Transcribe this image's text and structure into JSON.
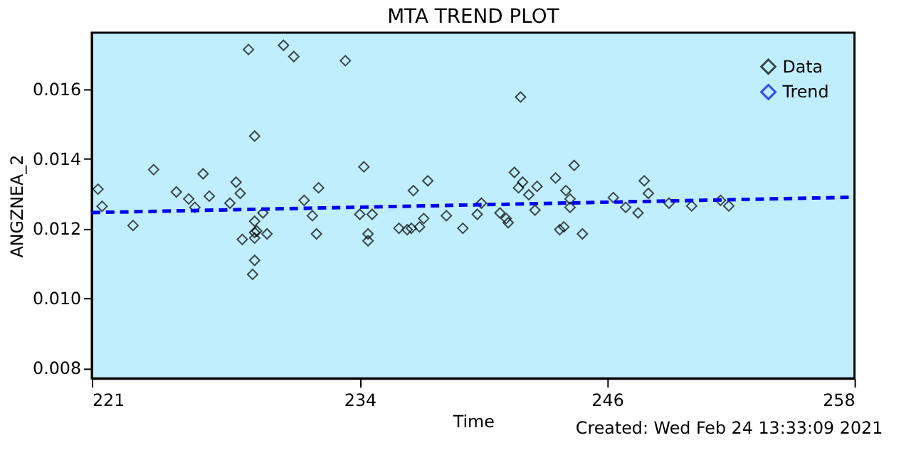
{
  "chart_data": {
    "type": "scatter",
    "title": "MTA TREND PLOT",
    "xlabel": "Time",
    "ylabel": "ANGZNEA_2",
    "annotations": [
      "Created: Wed Feb 24 13:33:09 2021"
    ],
    "xlim": [
      221,
      258
    ],
    "xticks": [
      221,
      234,
      246,
      258
    ],
    "ylim": [
      0.0077,
      0.0176
    ],
    "yticks": [
      0.008,
      {
        "value": 0.01,
        "label": "0.010"
      },
      0.012,
      0.014,
      0.016
    ],
    "grid": false,
    "legend": "top right",
    "series": [
      {
        "name": "Data",
        "marker": "diamond",
        "color": "#000000",
        "x": [
          221.3,
          221.5,
          223.0,
          224.0,
          225.1,
          225.7,
          226.0,
          226.4,
          226.7,
          227.7,
          228.0,
          228.2,
          228.3,
          228.6,
          228.9,
          228.9,
          228.9,
          228.9,
          229.0,
          228.9,
          228.8,
          229.3,
          229.5,
          230.3,
          230.8,
          231.3,
          231.7,
          231.9,
          232.0,
          233.3,
          234.2,
          234.0,
          234.6,
          234.4,
          234.4,
          235.9,
          236.3,
          236.5,
          236.9,
          237.1,
          236.6,
          237.3,
          238.2,
          239.0,
          239.7,
          239.9,
          240.8,
          241.1,
          241.2,
          241.5,
          241.8,
          241.9,
          241.7,
          242.2,
          242.5,
          242.6,
          243.5,
          243.7,
          243.9,
          244.0,
          244.4,
          244.2,
          244.2,
          244.8,
          246.3,
          246.9,
          247.5,
          247.8,
          248.0,
          249.0,
          250.1,
          251.5,
          251.9
        ],
        "values": [
          0.01312,
          0.01263,
          0.01208,
          0.01368,
          0.01304,
          0.01284,
          0.0126,
          0.01356,
          0.01292,
          0.01272,
          0.01332,
          0.013,
          0.01168,
          0.01712,
          0.0122,
          0.01188,
          0.01172,
          0.01464,
          0.01192,
          0.01108,
          0.01068,
          0.01244,
          0.01184,
          0.01724,
          0.01692,
          0.0128,
          0.01236,
          0.01184,
          0.01316,
          0.0168,
          0.01376,
          0.0124,
          0.0124,
          0.01184,
          0.01164,
          0.012,
          0.01196,
          0.012,
          0.01204,
          0.01228,
          0.01308,
          0.01336,
          0.01236,
          0.012,
          0.0124,
          0.01272,
          0.01244,
          0.01228,
          0.01216,
          0.0136,
          0.01576,
          0.01332,
          0.01316,
          0.01296,
          0.01252,
          0.0132,
          0.01344,
          0.01196,
          0.01204,
          0.01308,
          0.0138,
          0.01284,
          0.0126,
          0.01184,
          0.01288,
          0.0126,
          0.01244,
          0.01336,
          0.013,
          0.01272,
          0.01264,
          0.0128,
          0.01264
        ]
      },
      {
        "name": "Trend",
        "type": "line",
        "line_style": "dashed",
        "color": "#0000ff",
        "x": [
          221,
          258
        ],
        "values": [
          0.01245,
          0.01289
        ]
      }
    ]
  }
}
